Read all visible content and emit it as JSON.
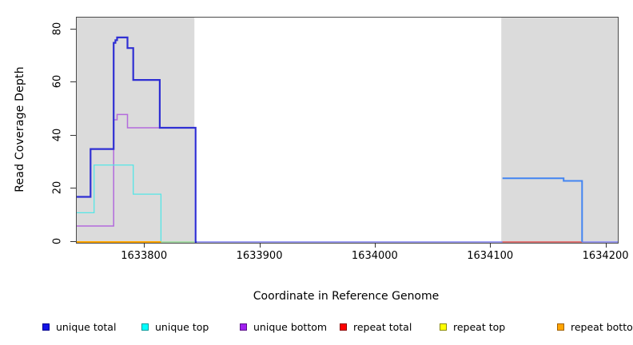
{
  "chart_data": {
    "type": "line",
    "subtype": "step-coverage",
    "title": "",
    "xlabel": "Coordinate in Reference Genome",
    "ylabel": "Read Coverage Depth",
    "xlim": [
      1633741,
      1634210
    ],
    "ylim": [
      0,
      84.5
    ],
    "xticks": [
      1633800,
      1633900,
      1634000,
      1634100,
      1634200
    ],
    "yticks": [
      0,
      20,
      40,
      60,
      80
    ],
    "grid": false,
    "legend_position": "bottom",
    "shaded_regions": [
      {
        "x0": 1633741,
        "x1": 1633843,
        "color": "#dbdbdb"
      },
      {
        "x0": 1634109,
        "x1": 1634210,
        "color": "#dbdbdb"
      }
    ],
    "legend": [
      {
        "label": "unique total",
        "fill": "#1414e6",
        "border": "#000090"
      },
      {
        "label": "unique top",
        "fill": "#00ffff",
        "border": "#009a9a"
      },
      {
        "label": "unique bottom",
        "fill": "#a020f0",
        "border": "#5c0e8b"
      },
      {
        "label": "repeat total",
        "fill": "#ff0000",
        "border": "#8b0000"
      },
      {
        "label": "repeat top",
        "fill": "#ffff00",
        "border": "#8b8b00"
      },
      {
        "label": "repeat bottom",
        "fill": "#ffa500",
        "border": "#a06000"
      }
    ],
    "series": [
      {
        "name": "unique bottom",
        "segments": [
          {
            "color": "#b36bdc",
            "width": 1.5,
            "points": [
              [
                1633741,
                6
              ],
              [
                1633773,
                46
              ],
              [
                1633776,
                48
              ],
              [
                1633785,
                43
              ],
              [
                1633844,
                0
              ]
            ],
            "end": 1633844
          }
        ]
      },
      {
        "name": "unique top",
        "segments": [
          {
            "color": "#55e6e6",
            "width": 1.3,
            "points": [
              [
                1633741,
                11
              ],
              [
                1633756,
                29
              ],
              [
                1633790,
                18
              ],
              [
                1633814,
                0
              ]
            ],
            "end": 1633814
          },
          {
            "color": "#98dc98",
            "width": 1.5,
            "points": [
              [
                1633814,
                0
              ]
            ],
            "end": 1633843
          }
        ]
      },
      {
        "name": "repeat top",
        "segments": [
          {
            "color": "#ffff00",
            "width": 1.4,
            "points": [
              [
                1633741,
                0
              ]
            ],
            "end": 1633814
          }
        ]
      },
      {
        "name": "repeat bottom",
        "segments": [
          {
            "color": "#ffa500",
            "width": 1.9,
            "points": [
              [
                1633741,
                0
              ]
            ],
            "end": 1633814
          }
        ]
      },
      {
        "name": "repeat total",
        "segments": [
          {
            "color": "#e25555",
            "width": 1.4,
            "points": [
              [
                1634109,
                0
              ]
            ],
            "end": 1634179
          }
        ]
      },
      {
        "name": "unique total",
        "segments": [
          {
            "color": "#9191f0",
            "width": 1.7,
            "points": [
              [
                1633845,
                0
              ]
            ],
            "end": 1634110
          },
          {
            "color": "#9191f0",
            "width": 1.7,
            "points": [
              [
                1634179,
                0
              ]
            ],
            "end": 1634210
          },
          {
            "color": "#4385f2",
            "width": 2.0,
            "points": [
              [
                1634110,
                24
              ],
              [
                1634163,
                23
              ],
              [
                1634179,
                0
              ]
            ],
            "end": 1634179
          },
          {
            "color": "#2f2fd3",
            "width": 2.2,
            "points": [
              [
                1633741,
                17
              ],
              [
                1633753,
                35
              ],
              [
                1633773,
                75
              ],
              [
                1633774.5,
                76
              ],
              [
                1633776,
                77
              ],
              [
                1633785,
                73
              ],
              [
                1633790,
                61
              ],
              [
                1633813,
                43
              ],
              [
                1633844,
                0
              ]
            ],
            "end": 1633845
          }
        ]
      }
    ]
  }
}
